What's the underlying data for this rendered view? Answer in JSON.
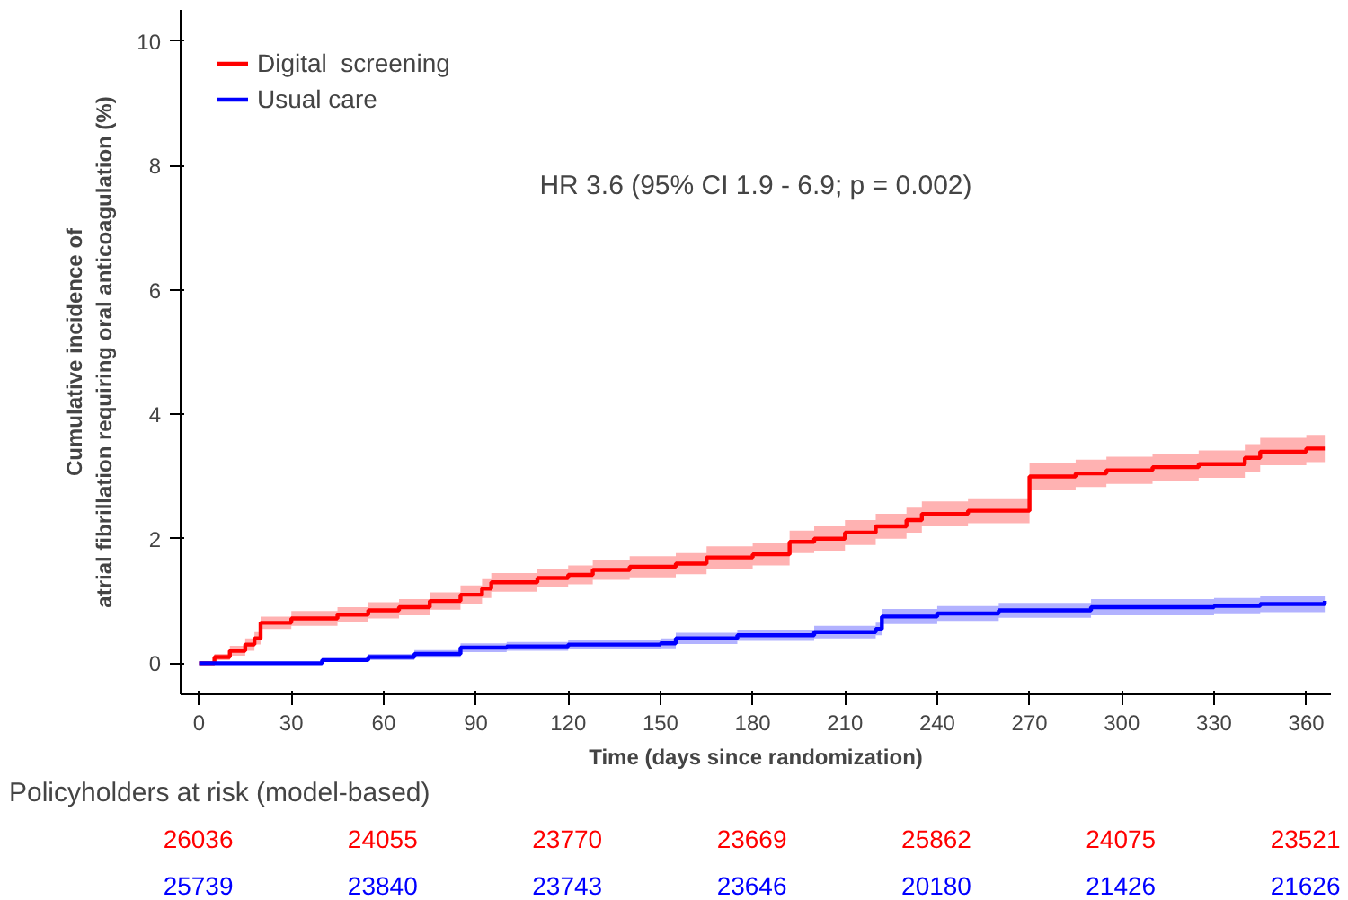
{
  "chart_data": {
    "type": "step",
    "xlabel": "Time (days since randomization)",
    "ylabel": "Cumulative incidence of\natrial fibrillation requiring oral anticoagulation (%)",
    "xlim": [
      -6,
      368
    ],
    "ylim": [
      -0.5,
      10.5
    ],
    "xticks": [
      0,
      30,
      60,
      90,
      120,
      150,
      180,
      210,
      240,
      270,
      300,
      330,
      360
    ],
    "yticks": [
      0,
      2,
      4,
      6,
      8,
      10
    ],
    "legend": "top left",
    "series": [
      {
        "name": "Digital  screening",
        "color": "#ff0000",
        "x": [
          0,
          5,
          10,
          15,
          18,
          20,
          30,
          45,
          55,
          65,
          75,
          85,
          92,
          95,
          110,
          120,
          128,
          140,
          155,
          165,
          180,
          192,
          200,
          210,
          220,
          230,
          235,
          250,
          270,
          285,
          295,
          310,
          325,
          340,
          345,
          360,
          366
        ],
        "values": [
          0,
          0.1,
          0.2,
          0.3,
          0.4,
          0.65,
          0.72,
          0.78,
          0.85,
          0.9,
          1.0,
          1.1,
          1.2,
          1.3,
          1.37,
          1.42,
          1.5,
          1.55,
          1.6,
          1.7,
          1.75,
          1.95,
          2.0,
          2.1,
          2.2,
          2.3,
          2.4,
          2.45,
          3.0,
          3.05,
          3.1,
          3.15,
          3.2,
          3.3,
          3.4,
          3.45,
          3.45
        ],
        "lower": [
          0,
          0.05,
          0.12,
          0.2,
          0.3,
          0.55,
          0.6,
          0.66,
          0.72,
          0.77,
          0.86,
          0.95,
          1.05,
          1.15,
          1.22,
          1.27,
          1.34,
          1.38,
          1.43,
          1.52,
          1.57,
          1.77,
          1.8,
          1.9,
          2.0,
          2.1,
          2.2,
          2.25,
          2.78,
          2.83,
          2.88,
          2.93,
          2.98,
          3.08,
          3.18,
          3.23,
          3.23
        ],
        "upper": [
          0,
          0.15,
          0.28,
          0.4,
          0.5,
          0.75,
          0.84,
          0.9,
          0.98,
          1.03,
          1.14,
          1.25,
          1.35,
          1.45,
          1.52,
          1.57,
          1.66,
          1.72,
          1.77,
          1.88,
          1.93,
          2.13,
          2.2,
          2.3,
          2.4,
          2.5,
          2.6,
          2.65,
          3.22,
          3.27,
          3.32,
          3.37,
          3.42,
          3.52,
          3.62,
          3.67,
          3.67
        ]
      },
      {
        "name": "Usual care",
        "color": "#0000ff",
        "x": [
          0,
          40,
          55,
          70,
          85,
          100,
          120,
          150,
          155,
          175,
          200,
          220,
          222,
          240,
          260,
          290,
          330,
          345,
          366
        ],
        "values": [
          0,
          0.05,
          0.1,
          0.15,
          0.25,
          0.27,
          0.3,
          0.32,
          0.4,
          0.45,
          0.5,
          0.55,
          0.75,
          0.8,
          0.85,
          0.9,
          0.92,
          0.95,
          1.0
        ],
        "lower": [
          0,
          0.02,
          0.05,
          0.09,
          0.18,
          0.2,
          0.22,
          0.24,
          0.31,
          0.36,
          0.4,
          0.45,
          0.63,
          0.68,
          0.73,
          0.77,
          0.79,
          0.82,
          0.86
        ],
        "upper": [
          0,
          0.08,
          0.15,
          0.21,
          0.32,
          0.34,
          0.38,
          0.4,
          0.49,
          0.54,
          0.6,
          0.65,
          0.87,
          0.92,
          0.97,
          1.03,
          1.05,
          1.08,
          1.14
        ]
      }
    ],
    "annotations": [
      "HR 3.6 (95% CI 1.9 - 6.9; p = 0.002)",
      "Policyholders at risk (model-based)",
      "26036",
      "24055",
      "23770",
      "23669",
      "25862",
      "24075",
      "23521",
      "25739",
      "23840",
      "23743",
      "23646",
      "20180",
      "21426",
      "21626"
    ]
  }
}
